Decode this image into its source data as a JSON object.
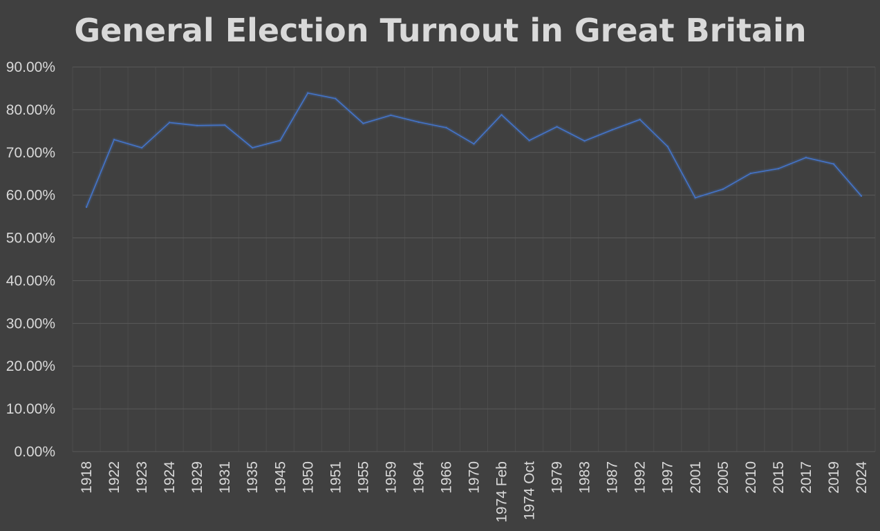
{
  "chart_data": {
    "type": "line",
    "title": "General Election Turnout in Great Britain",
    "xlabel": "",
    "ylabel": "",
    "ylim": [
      0,
      90
    ],
    "yticks": [
      "0.00%",
      "10.00%",
      "20.00%",
      "30.00%",
      "40.00%",
      "50.00%",
      "60.00%",
      "70.00%",
      "80.00%",
      "90.00%"
    ],
    "grid": true,
    "categories": [
      "1918",
      "1922",
      "1923",
      "1924",
      "1929",
      "1931",
      "1935",
      "1945",
      "1950",
      "1951",
      "1955",
      "1959",
      "1964",
      "1966",
      "1970",
      "1974 Feb",
      "1974 Oct",
      "1979",
      "1983",
      "1987",
      "1992",
      "1997",
      "2001",
      "2005",
      "2010",
      "2015",
      "2017",
      "2019",
      "2024"
    ],
    "series": [
      {
        "values": [
          57.2,
          73.0,
          71.1,
          77.0,
          76.3,
          76.4,
          71.1,
          72.8,
          83.9,
          82.6,
          76.8,
          78.7,
          77.1,
          75.8,
          72.0,
          78.8,
          72.8,
          76.0,
          72.7,
          75.3,
          77.7,
          71.4,
          59.4,
          61.4,
          65.1,
          66.2,
          68.8,
          67.3,
          59.8
        ],
        "color": "#4472c4"
      }
    ]
  }
}
